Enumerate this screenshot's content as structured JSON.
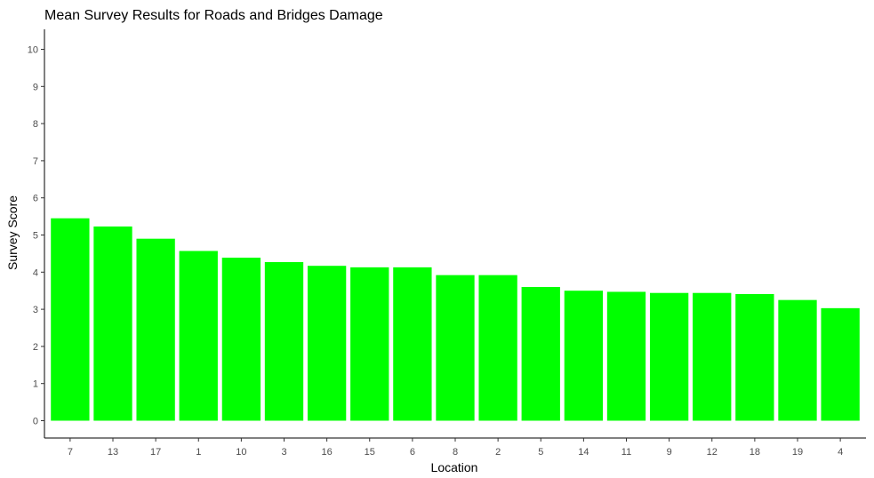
{
  "chart_data": {
    "type": "bar",
    "title": "Mean Survey Results for Roads and Bridges Damage",
    "xlabel": "Location",
    "ylabel": "Survey Score",
    "categories": [
      "7",
      "13",
      "17",
      "1",
      "10",
      "3",
      "16",
      "15",
      "6",
      "8",
      "2",
      "5",
      "14",
      "11",
      "9",
      "12",
      "18",
      "19",
      "4"
    ],
    "values": [
      5.45,
      5.23,
      4.9,
      4.57,
      4.39,
      4.27,
      4.17,
      4.13,
      4.13,
      3.92,
      3.92,
      3.6,
      3.5,
      3.47,
      3.44,
      3.44,
      3.41,
      3.25,
      3.03
    ],
    "ylim": [
      0,
      10.5
    ],
    "yticks": [
      0,
      1,
      2,
      3,
      4,
      5,
      6,
      7,
      8,
      9,
      10
    ],
    "grid": false,
    "legend": "none",
    "bar_color": "#00ff00"
  }
}
